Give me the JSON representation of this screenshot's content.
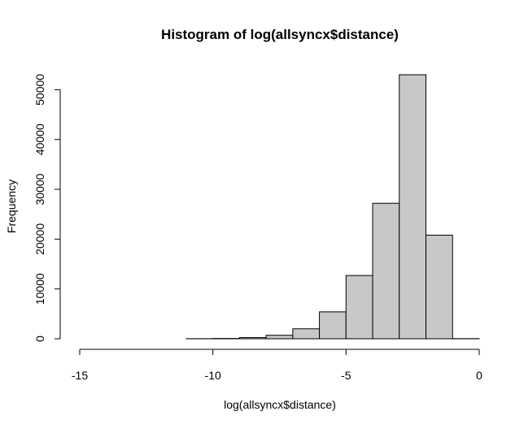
{
  "chart_data": {
    "type": "bar",
    "title": "Histogram of log(allsyncx$distance)",
    "xlabel": "log(allsyncx$distance)",
    "ylabel": "Frequency",
    "xlim": [
      -15,
      0
    ],
    "ylim": [
      0,
      53000
    ],
    "x_ticks": [
      "-15",
      "-10",
      "-5",
      "0"
    ],
    "y_ticks": [
      "0",
      "10000",
      "20000",
      "30000",
      "40000",
      "50000"
    ],
    "bin_width": 1,
    "bins": [
      {
        "x0": -15,
        "x1": -14,
        "value": 0
      },
      {
        "x0": -14,
        "x1": -13,
        "value": 0
      },
      {
        "x0": -13,
        "x1": -12,
        "value": 0
      },
      {
        "x0": -12,
        "x1": -11,
        "value": 0
      },
      {
        "x0": -11,
        "x1": -10,
        "value": 20
      },
      {
        "x0": -10,
        "x1": -9,
        "value": 60
      },
      {
        "x0": -9,
        "x1": -8,
        "value": 250
      },
      {
        "x0": -8,
        "x1": -7,
        "value": 700
      },
      {
        "x0": -7,
        "x1": -6,
        "value": 2000
      },
      {
        "x0": -6,
        "x1": -5,
        "value": 5400
      },
      {
        "x0": -5,
        "x1": -4,
        "value": 12700
      },
      {
        "x0": -4,
        "x1": -3,
        "value": 27200
      },
      {
        "x0": -3,
        "x1": -2,
        "value": 53000
      },
      {
        "x0": -2,
        "x1": -1,
        "value": 20800
      },
      {
        "x0": -1,
        "x1": 0,
        "value": 30
      }
    ],
    "bar_fill": "#c8c8c8",
    "bar_stroke": "#000000",
    "grid": false,
    "legend": "none"
  }
}
